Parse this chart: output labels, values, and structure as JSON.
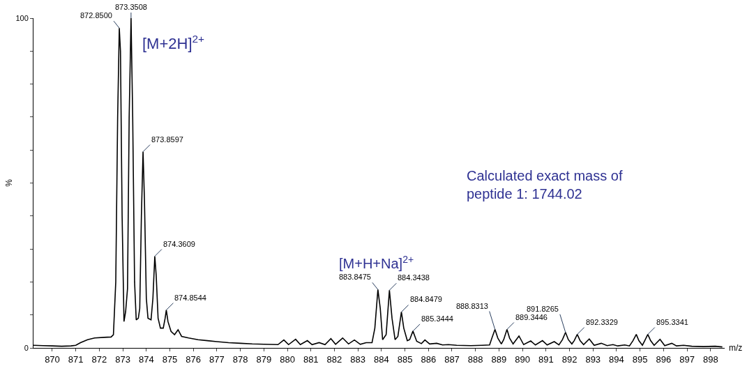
{
  "chart_data": {
    "type": "line",
    "xlabel": "m/z",
    "ylabel": "%",
    "xlim": [
      869.2,
      898.6
    ],
    "ylim": [
      0,
      100
    ],
    "xticks": [
      870,
      871,
      872,
      873,
      874,
      875,
      876,
      877,
      878,
      879,
      880,
      881,
      882,
      883,
      884,
      885,
      886,
      887,
      888,
      889,
      890,
      891,
      892,
      893,
      894,
      895,
      896,
      897,
      898
    ],
    "yticks": [
      0,
      {
        "value": 10,
        "label": null
      },
      {
        "value": 20,
        "label": null
      },
      {
        "value": 30,
        "label": null
      },
      {
        "value": 40,
        "label": null
      },
      {
        "value": 50,
        "label": null
      },
      {
        "value": 60,
        "label": null
      },
      {
        "value": 70,
        "label": null
      },
      {
        "value": 80,
        "label": null
      },
      {
        "value": 90,
        "label": null
      },
      100
    ],
    "marker": "none",
    "line_style": "solid",
    "series": [
      {
        "color": "#000000",
        "x": [
          869.2,
          869.6,
          870.0,
          870.4,
          870.8,
          871.0,
          871.2,
          871.5,
          871.8,
          872.2,
          872.5,
          872.6,
          872.7,
          872.78,
          872.85,
          872.9,
          872.97,
          873.05,
          873.12,
          873.2,
          873.27,
          873.35,
          873.42,
          873.5,
          873.57,
          873.66,
          873.72,
          873.79,
          873.86,
          873.92,
          874.0,
          874.07,
          874.2,
          874.28,
          874.36,
          874.42,
          874.5,
          874.6,
          874.72,
          874.8,
          874.85,
          874.92,
          875.05,
          875.2,
          875.35,
          875.5,
          875.8,
          876.2,
          876.6,
          877.0,
          877.5,
          878.0,
          878.5,
          879.0,
          879.6,
          879.85,
          880.05,
          880.35,
          880.55,
          880.85,
          881.05,
          881.35,
          881.6,
          881.85,
          882.05,
          882.35,
          882.6,
          882.85,
          883.1,
          883.35,
          883.6,
          883.72,
          883.85,
          883.95,
          884.05,
          884.2,
          884.34,
          884.45,
          884.58,
          884.7,
          884.85,
          884.95,
          885.1,
          885.2,
          885.34,
          885.5,
          885.7,
          885.85,
          886.05,
          886.35,
          886.6,
          886.85,
          887.2,
          887.8,
          888.3,
          888.6,
          888.7,
          888.83,
          888.95,
          889.1,
          889.2,
          889.34,
          889.45,
          889.6,
          889.85,
          890.05,
          890.35,
          890.55,
          890.85,
          891.05,
          891.35,
          891.55,
          891.7,
          891.83,
          891.95,
          892.1,
          892.2,
          892.33,
          892.45,
          892.6,
          892.84,
          893.05,
          893.35,
          893.6,
          893.85,
          894.05,
          894.35,
          894.55,
          894.7,
          894.84,
          894.95,
          895.1,
          895.2,
          895.33,
          895.45,
          895.6,
          895.85,
          896.05,
          896.35,
          896.55,
          896.85,
          897.2,
          897.7,
          898.2,
          898.5
        ],
        "values": [
          0.8,
          0.7,
          0.6,
          0.5,
          0.6,
          0.8,
          1.6,
          2.5,
          3.0,
          3.2,
          3.3,
          4,
          20,
          70,
          97,
          90,
          40,
          8,
          11,
          18,
          70,
          100,
          70,
          20,
          8.5,
          9,
          12,
          40,
          59.5,
          45,
          15,
          9,
          8.5,
          15,
          27.8,
          22,
          9,
          6,
          6,
          9,
          11.5,
          8,
          5,
          4,
          5.5,
          3.5,
          3,
          2.5,
          2.2,
          1.9,
          1.6,
          1.4,
          1.2,
          1.1,
          1.0,
          2.4,
          1.0,
          2.6,
          1.0,
          2.2,
          1.0,
          1.6,
          1.0,
          2.8,
          1.1,
          3.0,
          1.2,
          2.4,
          1.1,
          1.6,
          1.6,
          6,
          17.7,
          12,
          2.5,
          4,
          17.5,
          9,
          2.5,
          3.5,
          10.9,
          6,
          2.2,
          2.5,
          5.1,
          2,
          1.3,
          2.4,
          1.2,
          1.4,
          0.9,
          1.0,
          0.8,
          0.7,
          0.8,
          0.9,
          3,
          5.6,
          3,
          1.2,
          2.5,
          5.6,
          3,
          1.2,
          3.6,
          1.0,
          2.1,
          0.9,
          2.2,
          0.9,
          1.9,
          0.9,
          2.5,
          4.7,
          2.5,
          1.2,
          2.2,
          4.1,
          2.2,
          1.0,
          2.7,
          0.8,
          1.4,
          0.7,
          1.0,
          0.6,
          0.9,
          0.6,
          2.2,
          4.1,
          2.2,
          0.8,
          2.2,
          4.1,
          2.2,
          0.8,
          2.6,
          0.7,
          1.4,
          0.6,
          0.8,
          0.5,
          0.4,
          0.5,
          0.3
        ]
      }
    ],
    "annotations": [
      {
        "text": "872.8500",
        "x": 872.85,
        "y": 97
      },
      {
        "text": "873.3508",
        "x": 873.35,
        "y": 100
      },
      {
        "text": "873.8597",
        "x": 873.86,
        "y": 59.5
      },
      {
        "text": "874.3609",
        "x": 874.36,
        "y": 27.8
      },
      {
        "text": "874.8544",
        "x": 874.85,
        "y": 11.5
      },
      {
        "text": "883.8475",
        "x": 883.85,
        "y": 17.7
      },
      {
        "text": "884.3438",
        "x": 884.34,
        "y": 17.5
      },
      {
        "text": "884.8479",
        "x": 884.85,
        "y": 10.9
      },
      {
        "text": "885.3444",
        "x": 885.34,
        "y": 5.1
      },
      {
        "text": "888.8313",
        "x": 888.83,
        "y": 5.6
      },
      {
        "text": "889.3446",
        "x": 889.34,
        "y": 5.6
      },
      {
        "text": "891.8265",
        "x": 891.83,
        "y": 4.7
      },
      {
        "text": "892.3329",
        "x": 892.33,
        "y": 4.1
      },
      {
        "text": "895.3341",
        "x": 895.33,
        "y": 4.1
      },
      "[M+2H]$^{2+}$",
      "[M+H+Na]$^{2+}$",
      "Calculated exact mass of\npeptide 1: 1744.02"
    ]
  }
}
